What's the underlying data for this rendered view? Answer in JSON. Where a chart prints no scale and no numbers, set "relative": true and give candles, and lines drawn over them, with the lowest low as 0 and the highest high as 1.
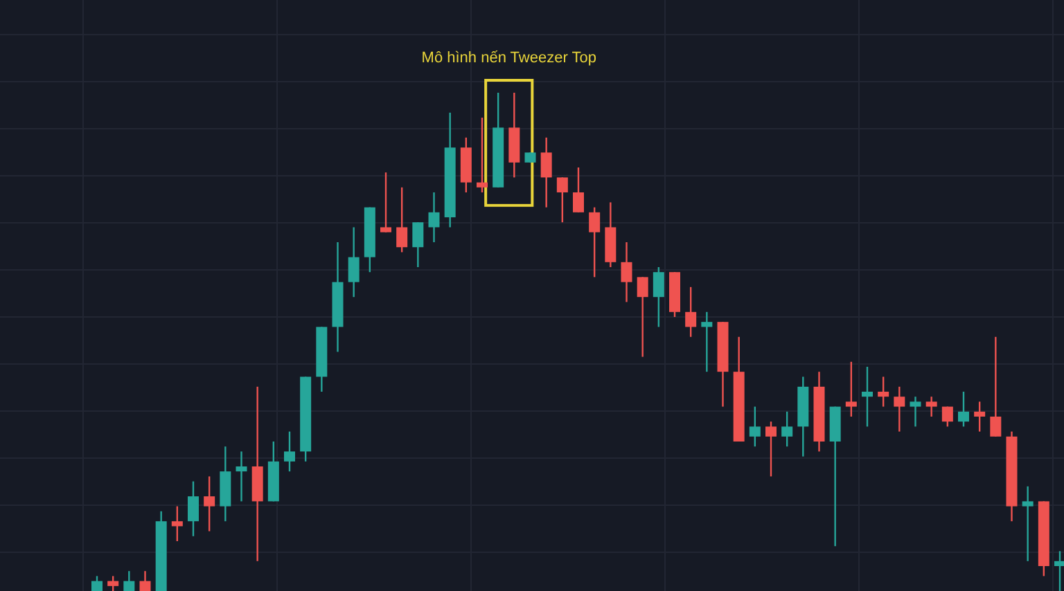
{
  "chart_data": {
    "type": "candlestick",
    "relative": true,
    "grid": true,
    "annotations": [
      "Mô hình nến Tweezer Top"
    ],
    "categories": [
      null,
      null,
      null,
      null,
      null,
      null,
      null,
      null,
      null,
      null,
      null,
      null,
      null,
      null,
      null,
      null,
      null,
      null,
      null,
      null,
      null,
      null,
      null,
      null,
      null,
      null,
      null,
      null,
      null,
      null,
      null,
      null,
      null,
      null,
      null,
      null,
      null,
      null,
      null,
      null,
      null,
      null,
      null,
      null,
      null,
      null,
      null,
      null,
      null,
      null,
      null,
      null,
      null,
      null,
      null,
      null,
      null,
      null,
      null,
      null,
      null
    ],
    "ohlc": [
      [
        0,
        0.03,
        0,
        0.02
      ],
      [
        0.02,
        0.03,
        0,
        0.01
      ],
      [
        0,
        0.04,
        0,
        0.02
      ],
      [
        0.02,
        0.04,
        0,
        0
      ],
      [
        0,
        0.16,
        0,
        0.14
      ],
      [
        0.14,
        0.17,
        0.1,
        0.13
      ],
      [
        0.14,
        0.22,
        0.11,
        0.19
      ],
      [
        0.19,
        0.23,
        0.12,
        0.17
      ],
      [
        0.17,
        0.29,
        0.14,
        0.24
      ],
      [
        0.24,
        0.28,
        0.18,
        0.25
      ],
      [
        0.25,
        0.41,
        0.06,
        0.18
      ],
      [
        0.18,
        0.3,
        0.18,
        0.26
      ],
      [
        0.26,
        0.32,
        0.24,
        0.28
      ],
      [
        0.28,
        0.43,
        0.26,
        0.43
      ],
      [
        0.43,
        0.53,
        0.4,
        0.53
      ],
      [
        0.53,
        0.7,
        0.48,
        0.62
      ],
      [
        0.62,
        0.73,
        0.59,
        0.67
      ],
      [
        0.67,
        0.77,
        0.64,
        0.77
      ],
      [
        0.73,
        0.84,
        0.72,
        0.72
      ],
      [
        0.73,
        0.81,
        0.68,
        0.69
      ],
      [
        0.69,
        0.74,
        0.65,
        0.74
      ],
      [
        0.73,
        0.8,
        0.7,
        0.76
      ],
      [
        0.75,
        0.96,
        0.73,
        0.89
      ],
      [
        0.89,
        0.91,
        0.8,
        0.82
      ],
      [
        0.82,
        0.95,
        0.8,
        0.81
      ],
      [
        0.81,
        1,
        0.81,
        0.93
      ],
      [
        0.93,
        1,
        0.83,
        0.86
      ],
      [
        0.86,
        0.88,
        0.86,
        0.88
      ],
      [
        0.88,
        0.91,
        0.77,
        0.83
      ],
      [
        0.83,
        0.83,
        0.74,
        0.8
      ],
      [
        0.8,
        0.85,
        0.76,
        0.76
      ],
      [
        0.76,
        0.77,
        0.63,
        0.72
      ],
      [
        0.73,
        0.78,
        0.65,
        0.66
      ],
      [
        0.66,
        0.7,
        0.58,
        0.62
      ],
      [
        0.63,
        0.63,
        0.47,
        0.59
      ],
      [
        0.59,
        0.65,
        0.53,
        0.64
      ],
      [
        0.64,
        0.64,
        0.55,
        0.56
      ],
      [
        0.56,
        0.61,
        0.51,
        0.53
      ],
      [
        0.53,
        0.56,
        0.44,
        0.54
      ],
      [
        0.54,
        0.54,
        0.37,
        0.44
      ],
      [
        0.44,
        0.51,
        0.3,
        0.3
      ],
      [
        0.31,
        0.37,
        0.29,
        0.33
      ],
      [
        0.33,
        0.34,
        0.23,
        0.31
      ],
      [
        0.31,
        0.36,
        0.29,
        0.33
      ],
      [
        0.33,
        0.43,
        0.27,
        0.41
      ],
      [
        0.41,
        0.44,
        0.28,
        0.3
      ],
      [
        0.3,
        0.37,
        0.09,
        0.37
      ],
      [
        0.38,
        0.46,
        0.35,
        0.37
      ],
      [
        0.39,
        0.45,
        0.33,
        0.4
      ],
      [
        0.4,
        0.43,
        0.37,
        0.39
      ],
      [
        0.39,
        0.41,
        0.32,
        0.37
      ],
      [
        0.37,
        0.39,
        0.33,
        0.38
      ],
      [
        0.38,
        0.39,
        0.35,
        0.37
      ],
      [
        0.37,
        0.37,
        0.33,
        0.34
      ],
      [
        0.34,
        0.4,
        0.33,
        0.36
      ],
      [
        0.36,
        0.38,
        0.32,
        0.35
      ],
      [
        0.35,
        0.51,
        0.31,
        0.31
      ],
      [
        0.31,
        0.32,
        0.14,
        0.17
      ],
      [
        0.17,
        0.21,
        0.06,
        0.18
      ],
      [
        0.18,
        0.18,
        0.03,
        0.05
      ],
      [
        0.05,
        0.08,
        0,
        0.06
      ]
    ]
  }
}
